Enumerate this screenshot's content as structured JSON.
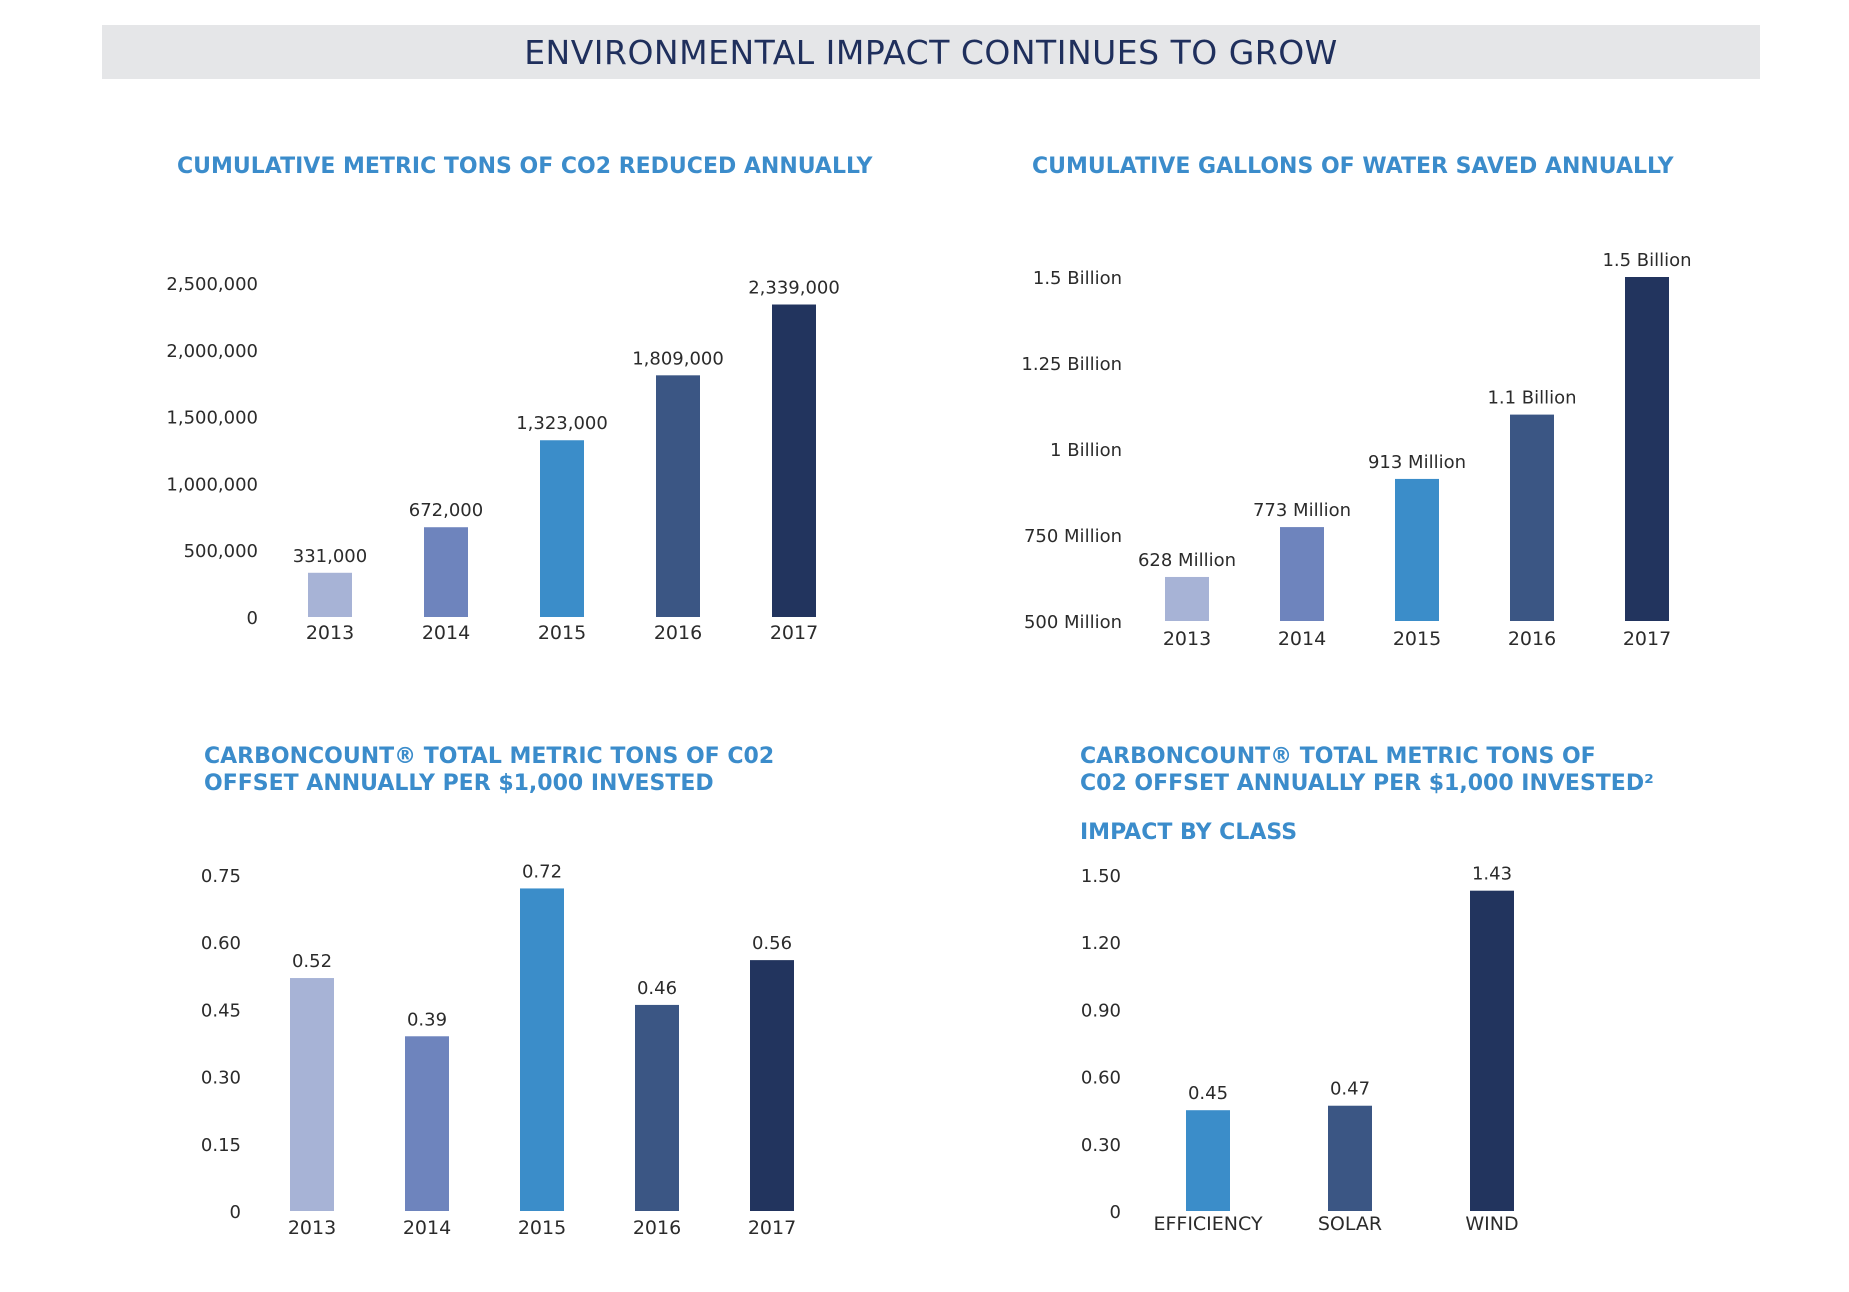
{
  "page_title": "ENVIRONMENTAL IMPACT CONTINUES TO GROW",
  "colors": {
    "banner_bg": "#e5e6e8",
    "title_text": "#1f2f5c",
    "chart_title": "#3b8ccb",
    "axis_text": "#2b2b2b",
    "year_colors": [
      "#a7b3d6",
      "#6e84bd",
      "#3b8dc9",
      "#3b5684",
      "#22345e"
    ],
    "class_colors": [
      "#3b8dc9",
      "#3b5684",
      "#22345e"
    ]
  },
  "chart_titles": {
    "co2": [
      "CUMULATIVE METRIC TONS OF CO2 REDUCED ANNUALLY"
    ],
    "water": [
      "CUMULATIVE GALLONS OF WATER SAVED ANNUALLY"
    ],
    "carbon": [
      "CARBONCOUNT® TOTAL METRIC TONS OF C02",
      "OFFSET ANNUALLY PER $1,000 INVESTED"
    ],
    "class": [
      "CARBONCOUNT® TOTAL METRIC TONS OF",
      "C02 OFFSET ANNUALLY PER $1,000 INVESTED²"
    ],
    "class_sub": "IMPACT BY CLASS"
  },
  "chart_data": [
    {
      "id": "co2",
      "type": "bar",
      "title": "CUMULATIVE METRIC TONS OF CO2 REDUCED ANNUALLY",
      "categories": [
        "2013",
        "2014",
        "2015",
        "2016",
        "2017"
      ],
      "values": [
        331000,
        672000,
        1323000,
        1809000,
        2339000
      ],
      "value_labels": [
        "331,000",
        "672,000",
        "1,323,000",
        "1,809,000",
        "2,339,000"
      ],
      "ylim": [
        0,
        2500000
      ],
      "yticks": [
        0,
        500000,
        1000000,
        1500000,
        2000000,
        2500000
      ],
      "ytick_labels": [
        "0",
        "500,000",
        "1,000,000",
        "1,500,000",
        "2,000,000",
        "2,500,000"
      ],
      "grid": false
    },
    {
      "id": "water",
      "type": "bar",
      "title": "CUMULATIVE GALLONS OF WATER SAVED ANNUALLY",
      "categories": [
        "2013",
        "2014",
        "2015",
        "2016",
        "2017"
      ],
      "values": [
        628000000,
        773000000,
        913000000,
        1100000000,
        1500000000
      ],
      "value_labels": [
        "628 Million",
        "773 Million",
        "913 Million",
        "1.1 Billion",
        "1.5 Billion"
      ],
      "ylim": [
        500000000,
        1500000000
      ],
      "yticks": [
        500000000,
        750000000,
        1000000000,
        1250000000,
        1500000000
      ],
      "ytick_labels": [
        "500 Million",
        "750 Million",
        "1 Billion",
        "1.25 Billion",
        "1.5 Billion"
      ],
      "grid": false
    },
    {
      "id": "carbon",
      "type": "bar",
      "title": "CARBONCOUNT® TOTAL METRIC TONS OF C02 OFFSET ANNUALLY PER $1,000 INVESTED",
      "categories": [
        "2013",
        "2014",
        "2015",
        "2016",
        "2017"
      ],
      "values": [
        0.52,
        0.39,
        0.72,
        0.46,
        0.56
      ],
      "value_labels": [
        "0.52",
        "0.39",
        "0.72",
        "0.46",
        "0.56"
      ],
      "ylim": [
        0,
        0.75
      ],
      "yticks": [
        0,
        0.15,
        0.3,
        0.45,
        0.6,
        0.75
      ],
      "ytick_labels": [
        "0",
        "0.15",
        "0.30",
        "0.45",
        "0.60",
        "0.75"
      ],
      "grid": false
    },
    {
      "id": "class",
      "type": "bar",
      "title": "CARBONCOUNT® TOTAL METRIC TONS OF C02 OFFSET ANNUALLY PER $1,000 INVESTED²",
      "subtitle": "IMPACT BY CLASS",
      "categories": [
        "EFFICIENCY",
        "SOLAR",
        "WIND"
      ],
      "values": [
        0.45,
        0.47,
        1.43
      ],
      "value_labels": [
        "0.45",
        "0.47",
        "1.43"
      ],
      "ylim": [
        0,
        1.5
      ],
      "yticks": [
        0,
        0.3,
        0.6,
        0.9,
        1.2,
        1.5
      ],
      "ytick_labels": [
        "0",
        "0.30",
        "0.60",
        "0.90",
        "1.20",
        "1.50"
      ],
      "grid": false
    }
  ]
}
